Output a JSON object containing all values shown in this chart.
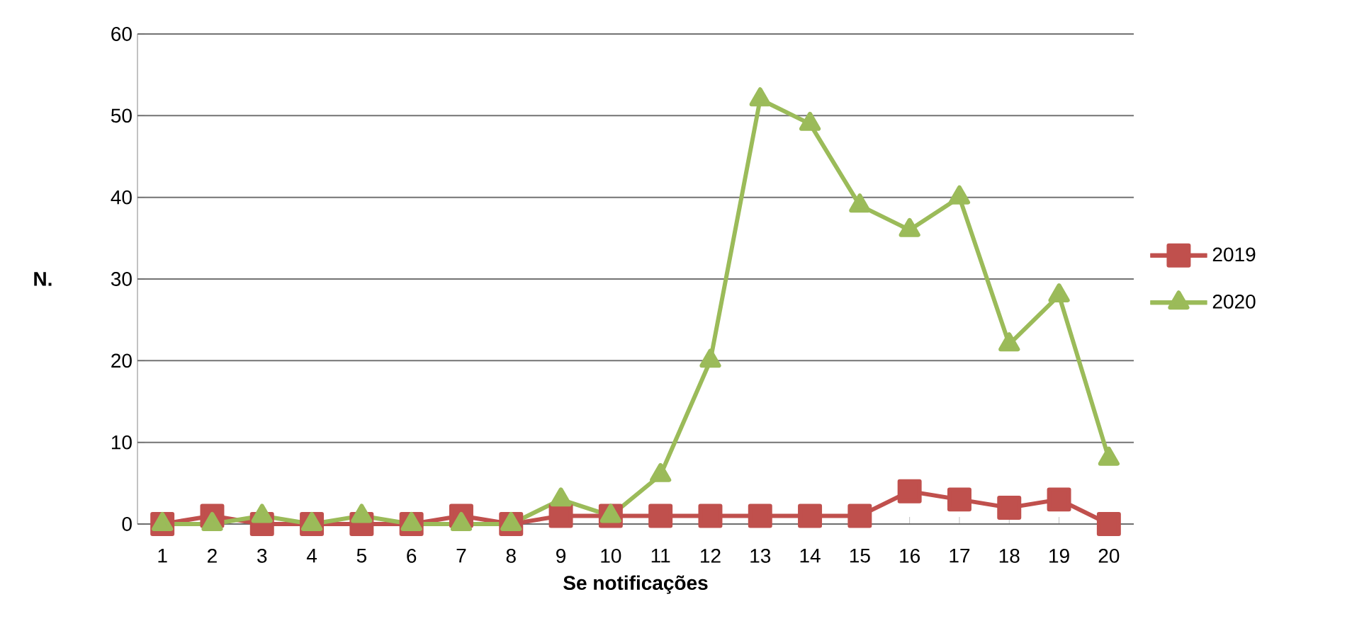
{
  "chart_data": {
    "type": "line",
    "xlabel": "Se notificações",
    "ylabel": "N.",
    "categories": [
      "1",
      "2",
      "3",
      "4",
      "5",
      "6",
      "7",
      "8",
      "9",
      "10",
      "11",
      "12",
      "13",
      "14",
      "15",
      "16",
      "17",
      "18",
      "19",
      "20"
    ],
    "series": [
      {
        "name": "2019",
        "color": "#c0504d",
        "marker": "square",
        "values": [
          0,
          1,
          0,
          0,
          0,
          0,
          1,
          0,
          1,
          1,
          1,
          1,
          1,
          1,
          1,
          4,
          3,
          2,
          3,
          0
        ]
      },
      {
        "name": "2020",
        "color": "#9bbb59",
        "marker": "triangle",
        "values": [
          0,
          0,
          1,
          0,
          1,
          0,
          0,
          0,
          3,
          1,
          6,
          20,
          52,
          49,
          39,
          36,
          40,
          22,
          28,
          8
        ]
      }
    ],
    "ylim": [
      0,
      60
    ],
    "yticks": [
      0,
      10,
      20,
      30,
      40,
      50,
      60
    ],
    "grid": "y",
    "legend": "right",
    "line_style": "solid"
  }
}
